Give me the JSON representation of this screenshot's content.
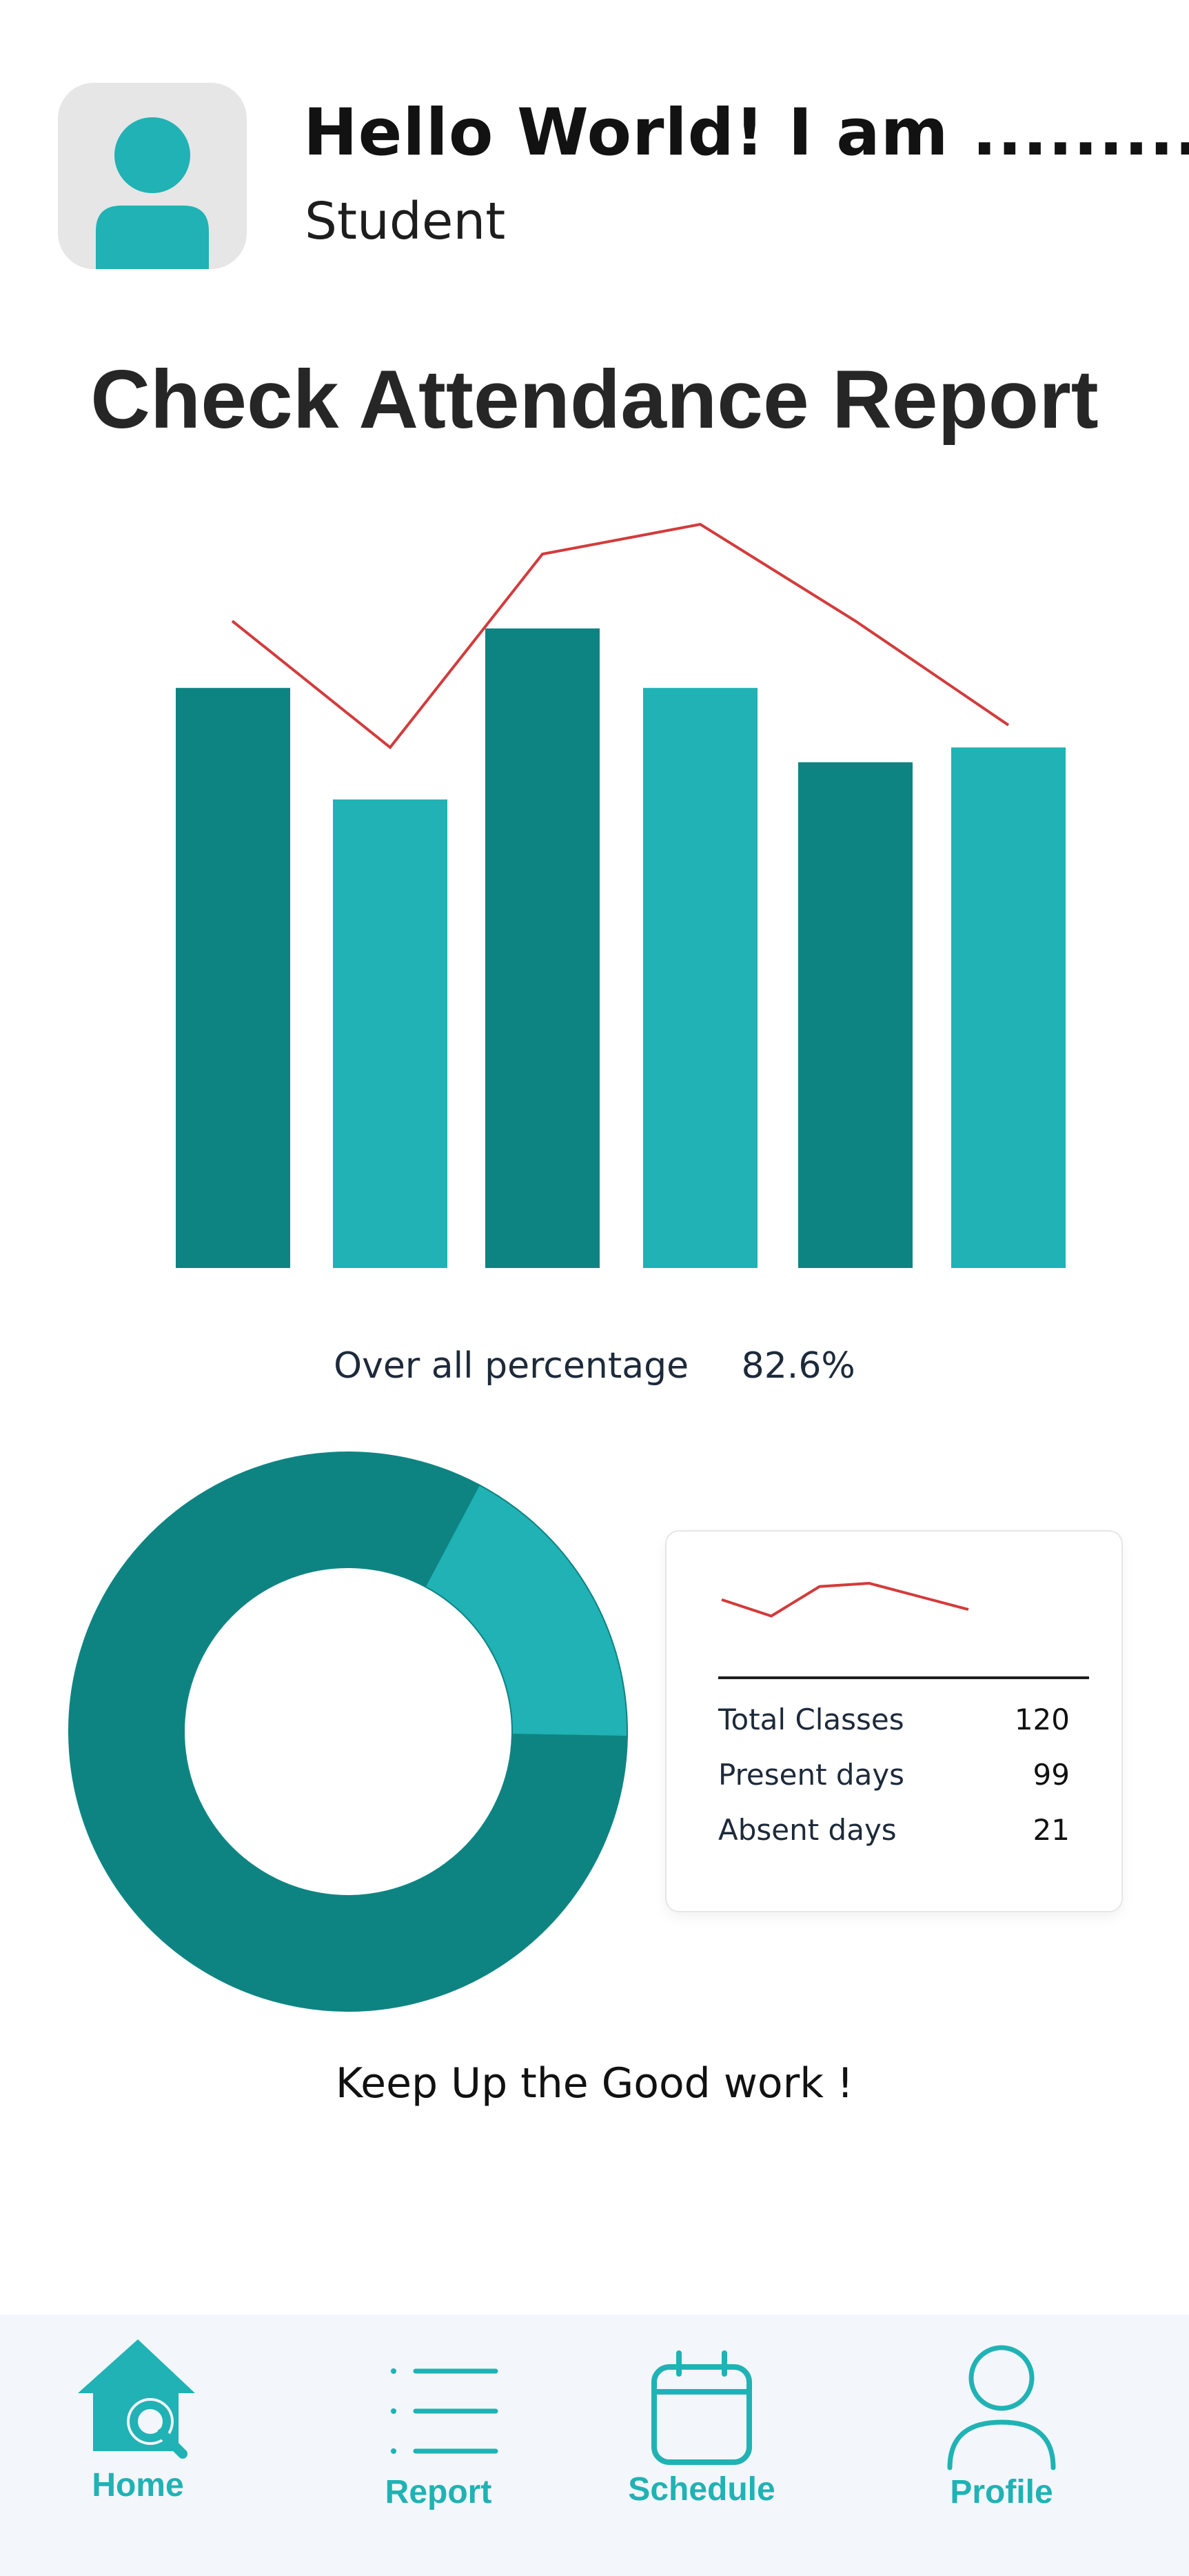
{
  "header": {
    "greeting": "Hello World! I am  .........",
    "role": "Student"
  },
  "page_title": "Check Attendance Report",
  "colors": {
    "dark_teal": "#0e8482",
    "light_teal": "#20b2b4",
    "trend_red": "#d33b3b",
    "avatar_bg": "#e6e6e6",
    "nav_bg": "#f3f6fa"
  },
  "chart_data": [
    {
      "type": "bar",
      "values": [
        0.78,
        0.63,
        0.86,
        0.78,
        0.68,
        0.7
      ],
      "colors": [
        "#0e8482",
        "#20b2b4",
        "#0e8482",
        "#20b2b4",
        "#0e8482",
        "#20b2b4"
      ],
      "trend": [
        0.87,
        0.7,
        0.96,
        1.0,
        0.87,
        0.73
      ],
      "ylim": [
        0,
        1
      ],
      "grid": false
    },
    {
      "type": "pie",
      "values": [
        99,
        21
      ],
      "colors": [
        "#0e8482",
        "#20b2b4"
      ],
      "style": "donut"
    }
  ],
  "overall": {
    "label": "Over all percentage",
    "value": "82.6%"
  },
  "stats": {
    "sparkline": [
      0.75,
      0.5,
      0.95,
      1.0,
      0.8,
      0.6
    ],
    "rows": [
      {
        "label": "Total Classes",
        "value": "120"
      },
      {
        "label": "Present days",
        "value": "99"
      },
      {
        "label": "Absent days",
        "value": "21"
      }
    ]
  },
  "motivation": "Keep Up the Good work !",
  "nav": {
    "items": [
      {
        "label": "Home",
        "icon": "home-search-icon"
      },
      {
        "label": "Report",
        "icon": "list-icon"
      },
      {
        "label": "Schedule",
        "icon": "calendar-icon"
      },
      {
        "label": "Profile",
        "icon": "user-icon"
      }
    ]
  }
}
